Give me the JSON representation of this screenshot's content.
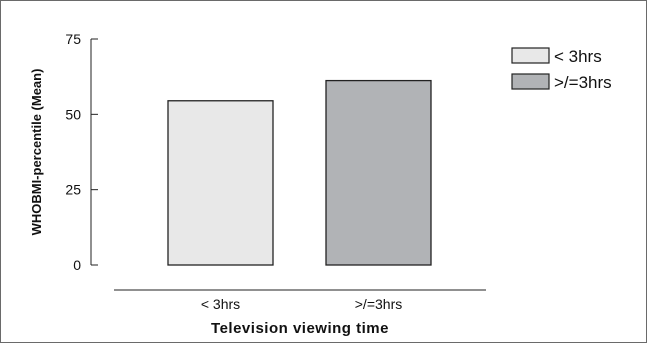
{
  "chart_data": {
    "type": "bar",
    "categories": [
      "< 3hrs",
      ">/=3hrs"
    ],
    "values": [
      54.5,
      61.2
    ],
    "xlabel": "Television viewing time",
    "ylabel": "WHOBMI-percentile (Mean)",
    "ylim": [
      0,
      75
    ],
    "yticks": [
      0,
      25,
      50,
      75
    ],
    "grid": false,
    "legend": {
      "placement": "top-right",
      "entries": [
        "< 3hrs",
        ">/=3hrs"
      ]
    },
    "colors": [
      "#e8e8e8",
      "#b1b3b6"
    ]
  }
}
